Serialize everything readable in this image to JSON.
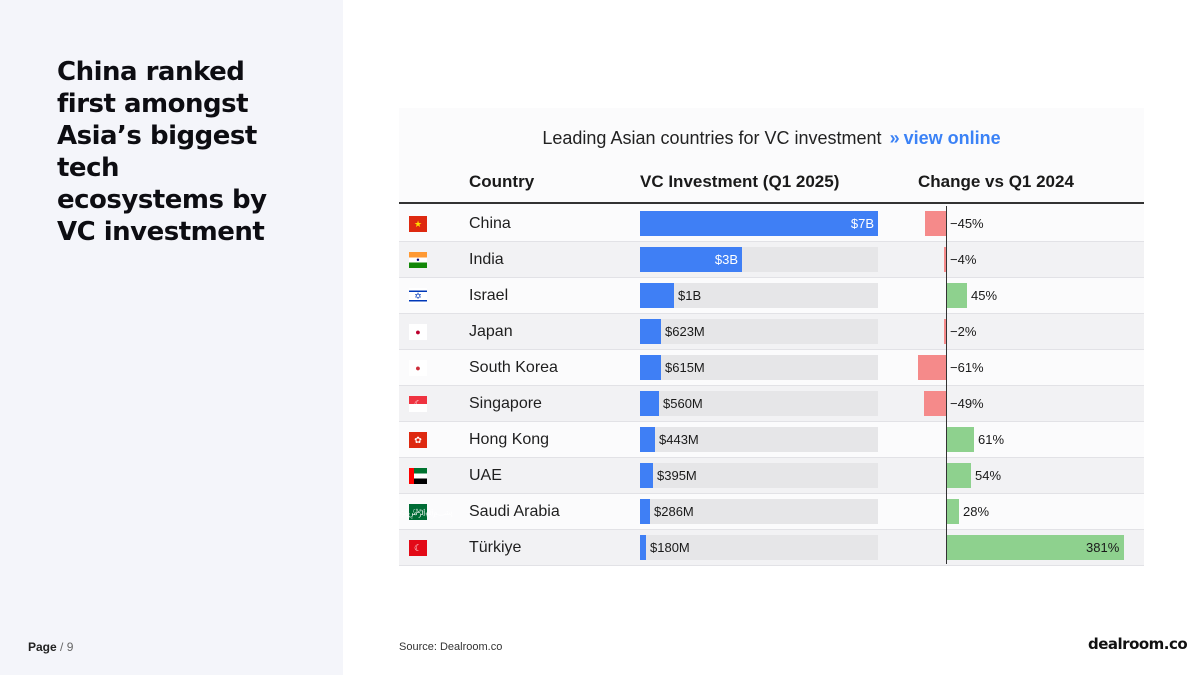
{
  "headline": [
    "China ranked",
    "first amongst",
    "Asia’s biggest tech",
    "ecosystems by",
    "VC investment"
  ],
  "page": {
    "label": "Page",
    "separator": "/",
    "number": "9"
  },
  "chart": {
    "title": "Leading Asian countries for VC investment",
    "link_arrow": "»",
    "link_label": "view online",
    "headers": {
      "country": "Country",
      "investment": "VC Investment (Q1 2025)",
      "change": "Change vs Q1 2024"
    }
  },
  "chart_data": {
    "type": "table",
    "columns": [
      "Country",
      "VC Investment (Q1 2025)",
      "Change vs Q1 2024"
    ],
    "rows": [
      {
        "country": "China",
        "flag": "china-flag-icon",
        "investment_usd_m": 7000,
        "investment_label": "$7B",
        "change_pct": -45,
        "change_label": "−45%"
      },
      {
        "country": "India",
        "flag": "india-flag-icon",
        "investment_usd_m": 3000,
        "investment_label": "$3B",
        "change_pct": -4,
        "change_label": "−4%"
      },
      {
        "country": "Israel",
        "flag": "israel-flag-icon",
        "investment_usd_m": 1000,
        "investment_label": "$1B",
        "change_pct": 45,
        "change_label": "45%"
      },
      {
        "country": "Japan",
        "flag": "japan-flag-icon",
        "investment_usd_m": 623,
        "investment_label": "$623M",
        "change_pct": -2,
        "change_label": "−2%"
      },
      {
        "country": "South Korea",
        "flag": "south-korea-flag-icon",
        "investment_usd_m": 615,
        "investment_label": "$615M",
        "change_pct": -61,
        "change_label": "−61%"
      },
      {
        "country": "Singapore",
        "flag": "singapore-flag-icon",
        "investment_usd_m": 560,
        "investment_label": "$560M",
        "change_pct": -49,
        "change_label": "−49%"
      },
      {
        "country": "Hong Kong",
        "flag": "hong-kong-flag-icon",
        "investment_usd_m": 443,
        "investment_label": "$443M",
        "change_pct": 61,
        "change_label": "61%"
      },
      {
        "country": "UAE",
        "flag": "uae-flag-icon",
        "investment_usd_m": 395,
        "investment_label": "$395M",
        "change_pct": 54,
        "change_label": "54%"
      },
      {
        "country": "Saudi Arabia",
        "flag": "saudi-arabia-flag-icon",
        "investment_usd_m": 286,
        "investment_label": "$286M",
        "change_pct": 28,
        "change_label": "28%"
      },
      {
        "country": "Türkiye",
        "flag": "turkiye-flag-icon",
        "investment_usd_m": 180,
        "investment_label": "$180M",
        "change_pct": 381,
        "change_label": "381%"
      }
    ],
    "colors": {
      "investment": "#3f7ff5",
      "track": "#e6e6e8",
      "negative": "#f58a8a",
      "positive": "#8ed18e"
    }
  },
  "footer": {
    "source": "Source:  Dealroom.co",
    "logo": "dealroom.co"
  }
}
